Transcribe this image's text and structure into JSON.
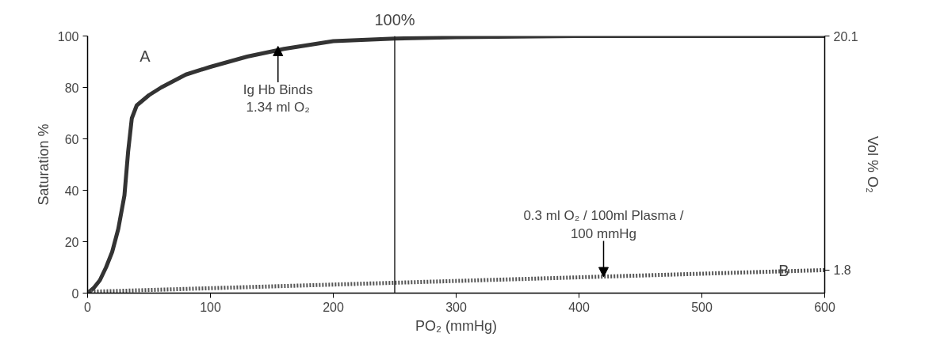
{
  "chart_data": {
    "type": "line",
    "xlabel": "PO₂ (mmHg)",
    "ylabel": "Saturation %",
    "y2label": "Vol % O₂",
    "x": [
      0,
      5,
      10,
      15,
      20,
      25,
      30,
      33,
      36,
      40,
      50,
      60,
      80,
      100,
      130,
      160,
      200,
      250,
      300,
      400,
      600
    ],
    "series": [
      {
        "name": "A",
        "color": "#333333",
        "line_style": "solid",
        "values": [
          0,
          2,
          5,
          10,
          16,
          25,
          38,
          55,
          68,
          73,
          77,
          80,
          85,
          88,
          92,
          95,
          98,
          99,
          99.5,
          100,
          100
        ]
      },
      {
        "name": "B",
        "color": "#555555",
        "line_style": "dotted",
        "axis": "y2",
        "x": [
          0,
          600
        ],
        "values": [
          0.1,
          1.8
        ]
      }
    ],
    "xlim": [
      0,
      600
    ],
    "xticks": [
      0,
      100,
      200,
      300,
      400,
      500,
      600
    ],
    "ylim": [
      0,
      100
    ],
    "yticks": [
      0,
      20,
      40,
      60,
      80,
      100
    ],
    "y2lim": [
      0,
      20.1
    ],
    "y2ticks": [
      20.1,
      1.8
    ],
    "ref_lines": [
      {
        "axis": "x",
        "value": 250,
        "label": null
      }
    ],
    "annotations": [
      {
        "text": "100%",
        "x": 250,
        "y": 100
      },
      {
        "text": "Ig Hb Binds\n1.34 ml O₂",
        "x": 155,
        "y": 96
      },
      {
        "text": "0.3 ml O₂ / 100ml Plasma /\n100 mmHg",
        "x": 420,
        "y": 6.3
      }
    ],
    "grid": false
  }
}
